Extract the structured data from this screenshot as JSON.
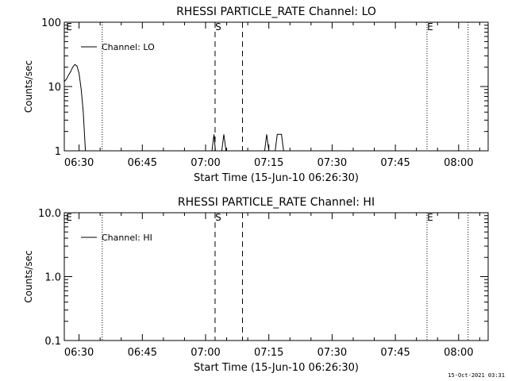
{
  "footer": {
    "timestamp": "15-Oct-2021 03:31"
  },
  "chart_data": [
    {
      "type": "line",
      "title": "RHESSI PARTICLE_RATE Channel: LO",
      "xlabel": "Start Time (15-Jun-10 06:26:30)",
      "ylabel": "Counts/sec",
      "yscale": "log",
      "ylim": [
        1,
        100
      ],
      "xlim": [
        "06:26:30",
        "08:07:00"
      ],
      "xticks": [
        "06:30",
        "06:45",
        "07:00",
        "07:15",
        "07:30",
        "07:45",
        "08:00"
      ],
      "yticks": [
        "1",
        "10",
        "100"
      ],
      "legend": "Channel: LO",
      "legend_position": "top-left",
      "series": [
        {
          "name": "Channel: LO",
          "points": [
            [
              "06:26:30",
              12
            ],
            [
              "06:27:00",
              13
            ],
            [
              "06:27:30",
              15
            ],
            [
              "06:28:00",
              17
            ],
            [
              "06:28:30",
              20
            ],
            [
              "06:29:00",
              22
            ],
            [
              "06:29:30",
              21
            ],
            [
              "06:30:00",
              16
            ],
            [
              "06:30:30",
              9
            ],
            [
              "06:31:00",
              4
            ],
            [
              "06:31:30",
              1
            ],
            [
              "07:01:30",
              1
            ],
            [
              "07:02:00",
              1.8
            ],
            [
              "07:02:20",
              1
            ],
            [
              "07:03:50",
              1
            ],
            [
              "07:04:20",
              1.8
            ],
            [
              "07:04:50",
              1
            ],
            [
              "07:14:00",
              1
            ],
            [
              "07:14:30",
              1.8
            ],
            [
              "07:15:00",
              1
            ],
            [
              "07:16:30",
              1
            ],
            [
              "07:17:00",
              1.8
            ],
            [
              "07:18:00",
              1.8
            ],
            [
              "07:18:30",
              1
            ]
          ]
        }
      ],
      "markers": [
        {
          "type": "dotted",
          "time": "06:35:30",
          "label": ""
        },
        {
          "type": "dashed",
          "time": "07:02:15",
          "label": "S"
        },
        {
          "type": "dashed",
          "time": "07:08:45",
          "label": ""
        },
        {
          "type": "dotted",
          "time": "07:52:30",
          "label": "E"
        },
        {
          "type": "dotted",
          "time": "08:02:15",
          "label": ""
        }
      ],
      "corner_labels": {
        "start": "E"
      }
    },
    {
      "type": "line",
      "title": "RHESSI PARTICLE_RATE Channel: HI",
      "xlabel": "Start Time (15-Jun-10 06:26:30)",
      "ylabel": "Counts/sec",
      "yscale": "log",
      "ylim": [
        0.1,
        10
      ],
      "xlim": [
        "06:26:30",
        "08:07:00"
      ],
      "xticks": [
        "06:30",
        "06:45",
        "07:00",
        "07:15",
        "07:30",
        "07:45",
        "08:00"
      ],
      "yticks": [
        "0.1",
        "1.0",
        "10.0"
      ],
      "legend": "Channel: HI",
      "legend_position": "top-left",
      "series": [
        {
          "name": "Channel: HI",
          "points": []
        }
      ],
      "markers": [
        {
          "type": "dotted",
          "time": "06:35:30",
          "label": ""
        },
        {
          "type": "dashed",
          "time": "07:02:15",
          "label": "S"
        },
        {
          "type": "dashed",
          "time": "07:08:45",
          "label": ""
        },
        {
          "type": "dotted",
          "time": "07:52:30",
          "label": "E"
        },
        {
          "type": "dotted",
          "time": "08:02:15",
          "label": ""
        }
      ],
      "corner_labels": {
        "start": "E"
      }
    }
  ]
}
